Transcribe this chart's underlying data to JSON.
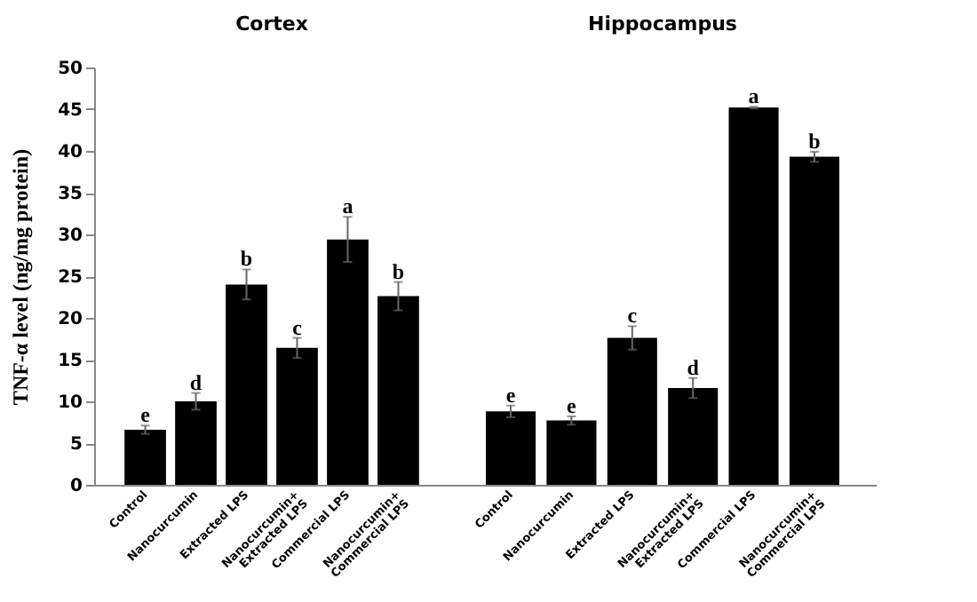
{
  "chart_data": [
    {
      "type": "bar",
      "title": "Cortex",
      "ylabel": "TNF-α  level (ng/mg protein)",
      "categories": [
        "Control",
        "Nanocurcumin",
        "Extracted LPS",
        "Nanocurcumin+\nExtracted LPS",
        "Commercial LPS",
        "Nanocurcumin+\nCommercial LPS"
      ],
      "values": [
        6.6,
        10.0,
        24.0,
        16.4,
        29.4,
        22.6
      ],
      "errors": [
        0.5,
        1.0,
        1.8,
        1.2,
        2.7,
        1.7
      ],
      "value_labels": [
        "e",
        "d",
        "b",
        "c",
        "a",
        "b"
      ],
      "color": "#000000",
      "ylim": [
        0,
        50
      ],
      "yticks": [
        0,
        5,
        10,
        15,
        20,
        25,
        30,
        35,
        40,
        45,
        50
      ]
    },
    {
      "type": "bar",
      "title": "Hippocampus",
      "categories": [
        "Control",
        "Nanocurcumin",
        "Extracted LPS",
        "Nanocurcumin+\nExtracted LPS",
        "Commercial LPS",
        "Nanocurcumin+\nCommercial LPS"
      ],
      "values": [
        8.8,
        7.7,
        17.6,
        11.6,
        45.2,
        39.3
      ],
      "errors": [
        0.7,
        0.5,
        1.4,
        1.2,
        0.1,
        0.6
      ],
      "value_labels": [
        "e",
        "e",
        "c",
        "d",
        "a",
        "b"
      ],
      "color": "#000000",
      "ylim": [
        0,
        50
      ],
      "tick_labels": "x"
    }
  ]
}
